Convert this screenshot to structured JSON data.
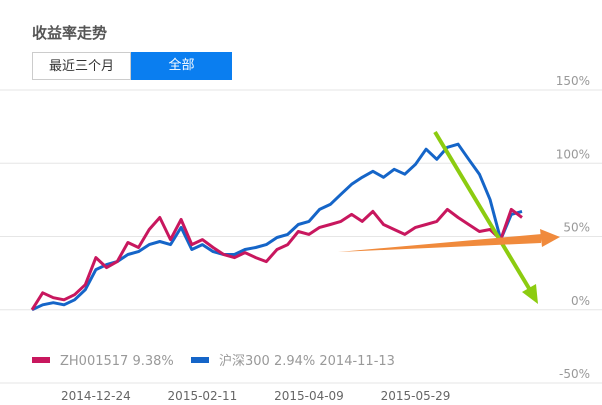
{
  "header": {
    "title": "收益率走势",
    "buttons": [
      "最近三个月",
      "全部"
    ]
  },
  "chart_data": {
    "type": "line",
    "categories": [
      null,
      null,
      null,
      null,
      null,
      null,
      "2014-12-24",
      null,
      null,
      null,
      null,
      null,
      null,
      null,
      null,
      null,
      "2015-02-11",
      null,
      null,
      null,
      null,
      null,
      null,
      null,
      null,
      null,
      "2015-04-09",
      null,
      null,
      null,
      null,
      null,
      null,
      null,
      null,
      null,
      "2015-05-29",
      null,
      null,
      null,
      null,
      null,
      null,
      null,
      null,
      null,
      null
    ],
    "series": [
      {
        "name": "ZH001517 9.38%",
        "color": "#c8175e",
        "values": [
          0,
          11.6,
          8.2,
          6.8,
          10.3,
          17.1,
          35.6,
          28.8,
          32.9,
          45.9,
          42.5,
          54.8,
          63.0,
          47.9,
          61.6,
          44.5,
          47.9,
          42.5,
          37.7,
          35.6,
          39.0,
          35.6,
          32.9,
          41.1,
          44.5,
          53.4,
          51.4,
          56.2,
          58.2,
          60.3,
          65.1,
          60.3,
          67.1,
          58.2,
          54.8,
          51.4,
          56.2,
          58.2,
          60.3,
          68.5,
          63.0,
          58.2,
          53.4,
          54.8,
          47.9,
          68.5,
          63.0
        ]
      },
      {
        "name": "沪深300 2.94% 2014-11-13",
        "color": "#1565c8",
        "values": [
          0,
          3.4,
          4.8,
          3.4,
          6.8,
          13.7,
          27.4,
          30.8,
          32.9,
          37.7,
          39.7,
          44.5,
          46.6,
          44.5,
          56.2,
          41.1,
          44.5,
          39.7,
          37.7,
          37.7,
          41.1,
          42.5,
          44.5,
          49.3,
          51.4,
          58.2,
          60.3,
          68.5,
          71.9,
          78.8,
          85.6,
          90.4,
          94.5,
          90.4,
          95.9,
          92.5,
          99.3,
          109.6,
          102.7,
          110.9,
          113.0,
          102.7,
          92.5,
          75.3,
          47.9,
          65.1,
          67.1
        ]
      }
    ],
    "ylim": [
      -50,
      150
    ],
    "yticks": [
      {
        "value": 150,
        "label": "150%"
      },
      {
        "value": 100,
        "label": "100%"
      },
      {
        "value": 50,
        "label": "50%"
      },
      {
        "value": 0,
        "label": "0%"
      },
      {
        "value": -50,
        "label": "-50%"
      }
    ],
    "grid": true
  }
}
